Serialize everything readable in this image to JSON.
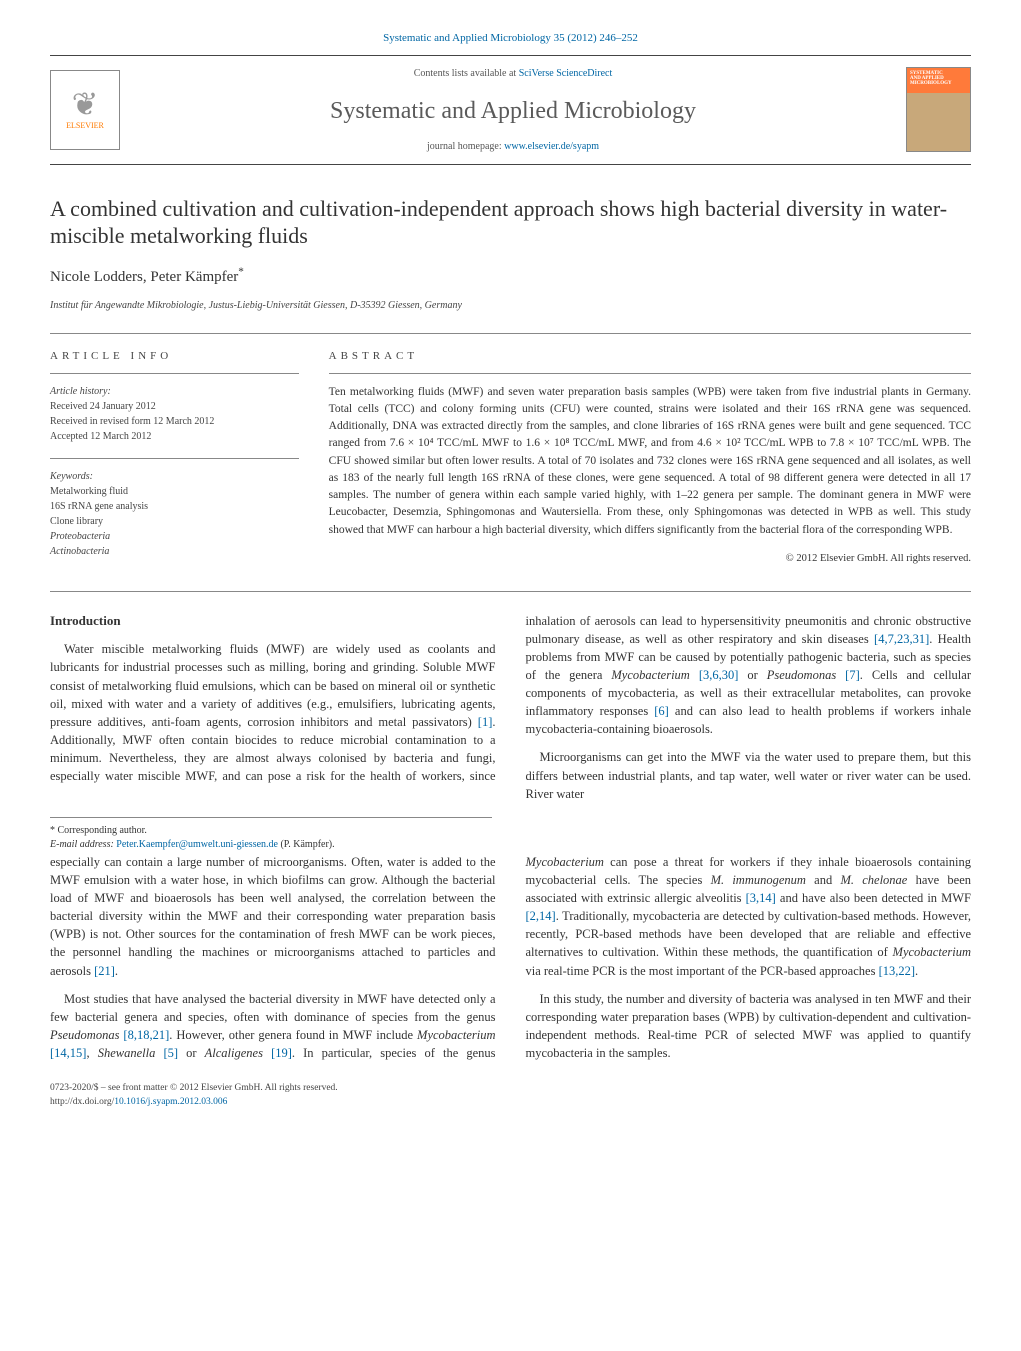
{
  "header": {
    "top_link": "Systematic and Applied Microbiology 35 (2012) 246–252",
    "contents_pre": "Contents lists available at ",
    "contents_link": "SciVerse ScienceDirect",
    "journal": "Systematic and Applied Microbiology",
    "homepage_pre": "journal homepage: ",
    "homepage_link": "www.elsevier.de/syapm",
    "elsevier": "ELSEVIER",
    "cover_l1": "SYSTEMATIC",
    "cover_l2": "AND APPLIED",
    "cover_l3": "MICROBIOLOGY"
  },
  "title": "A combined cultivation and cultivation-independent approach shows high bacterial diversity in water-miscible metalworking fluids",
  "authors": "Nicole Lodders, Peter Kämpfer",
  "corr_mark": "*",
  "affiliation": "Institut für Angewandte Mikrobiologie, Justus-Liebig-Universität Giessen, D-35392 Giessen, Germany",
  "article_info": {
    "heading": "article info",
    "history_label": "Article history:",
    "history_l1": "Received 24 January 2012",
    "history_l2": "Received in revised form 12 March 2012",
    "history_l3": "Accepted 12 March 2012",
    "keywords_label": "Keywords:",
    "kw1": "Metalworking fluid",
    "kw2": "16S rRNA gene analysis",
    "kw3": "Clone library",
    "kw4": "Proteobacteria",
    "kw5": "Actinobacteria"
  },
  "abstract": {
    "heading": "abstract",
    "text": "Ten metalworking fluids (MWF) and seven water preparation basis samples (WPB) were taken from five industrial plants in Germany. Total cells (TCC) and colony forming units (CFU) were counted, strains were isolated and their 16S rRNA gene was sequenced. Additionally, DNA was extracted directly from the samples, and clone libraries of 16S rRNA genes were built and gene sequenced. TCC ranged from 7.6 × 10⁴ TCC/mL MWF to 1.6 × 10⁸ TCC/mL MWF, and from 4.6 × 10² TCC/mL WPB to 7.8 × 10⁷ TCC/mL WPB. The CFU showed similar but often lower results. A total of 70 isolates and 732 clones were 16S rRNA gene sequenced and all isolates, as well as 183 of the nearly full length 16S rRNA of these clones, were gene sequenced. A total of 98 different genera were detected in all 17 samples. The number of genera within each sample varied highly, with 1–22 genera per sample. The dominant genera in MWF were Leucobacter, Desemzia, Sphingomonas and Wautersiella. From these, only Sphingomonas was detected in WPB as well. This study showed that MWF can harbour a high bacterial diversity, which differs significantly from the bacterial flora of the corresponding WPB.",
    "copyright": "© 2012 Elsevier GmbH. All rights reserved."
  },
  "body": {
    "intro_head": "Introduction",
    "p1a": "Water miscible metalworking fluids (MWF) are widely used as coolants and lubricants for industrial processes such as milling, boring and grinding. Soluble MWF consist of metalworking fluid emulsions, which can be based on mineral oil or synthetic oil, mixed with water and a variety of additives (e.g., emulsifiers, lubricating agents, pressure additives, anti-foam agents, corrosion inhibitors and metal passivators) ",
    "r1": "[1]",
    "p1b": ". Additionally, MWF often contain biocides to reduce microbial contamination to a minimum. Nevertheless, they are almost always colonised by bacteria and fungi, especially water miscible MWF, and can pose a risk for the health of workers, since inhalation of aerosols can lead to hypersensitivity pneumonitis and chronic obstructive pulmonary disease, as well as other respiratory and skin diseases ",
    "r4": "[4,7,23,31]",
    "p1c": ". Health problems from MWF can be caused by potentially pathogenic bacteria, such as species of the genera ",
    "sp_myco": "Mycobacterium",
    "r3": "[3,6,30]",
    "p1d": " or ",
    "sp_pseudo": "Pseudomonas",
    "r7": "[7]",
    "p1e": ". Cells and cellular components of mycobacteria, as well as their extracellular metabolites, can provoke inflammatory responses ",
    "r6": "[6]",
    "p1f": " and can also lead to health problems if workers inhale mycobacteria-containing bioaerosols.",
    "p2": "Microorganisms can get into the MWF via the water used to prepare them, but this differs between industrial plants, and tap water, well water or river water can be used. River water",
    "p3a": "especially can contain a large number of microorganisms. Often, water is added to the MWF emulsion with a water hose, in which biofilms can grow. Although the bacterial load of MWF and bioaerosols has been well analysed, the correlation between the bacterial diversity within the MWF and their corresponding water preparation basis (WPB) is not. Other sources for the contamination of fresh MWF can be work pieces, the personnel handling the machines or microorganisms attached to particles and aerosols ",
    "r21": "[21]",
    "p3b": ".",
    "p4a": "Most studies that have analysed the bacterial diversity in MWF have detected only a few bacterial genera and species, often with dominance of species from the genus ",
    "r8": "[8,18,21]",
    "p4b": ". However, other genera found in MWF include ",
    "r14": "[14,15]",
    "p4c": ", ",
    "sp_shew": "Shewanella",
    "r5": "[5]",
    "p4d": " or ",
    "sp_alc": "Alcaligenes",
    "r19": "[19]",
    "p4e": ". In particular, species of the genus ",
    "p4f": " can pose a threat for workers if they inhale bioaerosols containing mycobacterial cells. The species ",
    "sp_immuno": "M. immunogenum",
    "p4g": " and ",
    "sp_chel": "M. chelonae",
    "p4h": " have been associated with extrinsic allergic alveolitis ",
    "r314": "[3,14]",
    "p4i": " and have also been detected in MWF ",
    "r214": "[2,14]",
    "p4j": ". Traditionally, mycobacteria are detected by cultivation-based methods. However, recently, PCR-based methods have been developed that are reliable and effective alternatives to cultivation. Within these methods, the quantification of ",
    "p4k": " via real-time PCR is the most important of the PCR-based approaches ",
    "r1322": "[13,22]",
    "p4l": ".",
    "p5": "In this study, the number and diversity of bacteria was analysed in ten MWF and their corresponding water preparation bases (WPB) by cultivation-dependent and cultivation-independent methods. Real-time PCR of selected MWF was applied to quantify mycobacteria in the samples."
  },
  "footnotes": {
    "star": "* Corresponding author.",
    "email_label": "E-mail address: ",
    "email": "Peter.Kaempfer@umwelt.uni-giessen.de",
    "email_post": " (P. Kämpfer)."
  },
  "bottom": {
    "issn": "0723-2020/$ – see front matter © 2012 Elsevier GmbH. All rights reserved.",
    "doi_pre": "http://dx.doi.org/",
    "doi": "10.1016/j.syapm.2012.03.006"
  },
  "colors": {
    "link": "#0066a4",
    "rule": "#888888",
    "orange": "#ff7a00"
  }
}
